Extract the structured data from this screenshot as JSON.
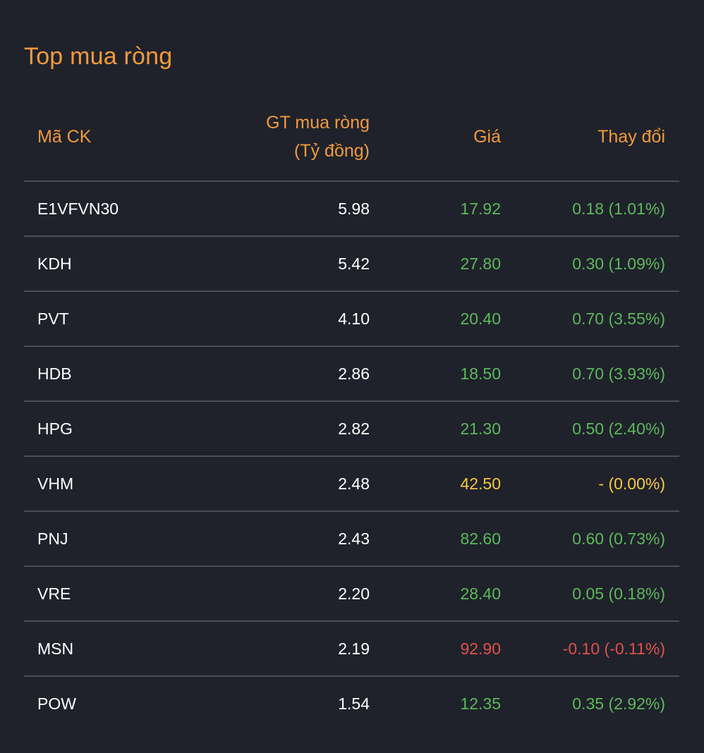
{
  "title": "Top mua ròng",
  "columns": {
    "code": "Mã CK",
    "value_line1": "GT mua ròng",
    "value_line2": "(Tỷ đồng)",
    "price": "Giá",
    "change": "Thay đổi"
  },
  "colors": {
    "title": "#f29a3b",
    "up": "#5cb85c",
    "reference": "#f6c83f",
    "down": "#e0504a",
    "background": "#1f222b"
  },
  "rows": [
    {
      "code": "E1VFVN30",
      "value": "5.98",
      "price": "17.92",
      "change": "0.18 (1.01%)",
      "trend": "up"
    },
    {
      "code": "KDH",
      "value": "5.42",
      "price": "27.80",
      "change": "0.30 (1.09%)",
      "trend": "up"
    },
    {
      "code": "PVT",
      "value": "4.10",
      "price": "20.40",
      "change": "0.70 (3.55%)",
      "trend": "up"
    },
    {
      "code": "HDB",
      "value": "2.86",
      "price": "18.50",
      "change": "0.70 (3.93%)",
      "trend": "up"
    },
    {
      "code": "HPG",
      "value": "2.82",
      "price": "21.30",
      "change": "0.50 (2.40%)",
      "trend": "up"
    },
    {
      "code": "VHM",
      "value": "2.48",
      "price": "42.50",
      "change": "- (0.00%)",
      "trend": "ref"
    },
    {
      "code": "PNJ",
      "value": "2.43",
      "price": "82.60",
      "change": "0.60 (0.73%)",
      "trend": "up"
    },
    {
      "code": "VRE",
      "value": "2.20",
      "price": "28.40",
      "change": "0.05 (0.18%)",
      "trend": "up"
    },
    {
      "code": "MSN",
      "value": "2.19",
      "price": "92.90",
      "change": "-0.10 (-0.11%)",
      "trend": "down"
    },
    {
      "code": "POW",
      "value": "1.54",
      "price": "12.35",
      "change": "0.35 (2.92%)",
      "trend": "up"
    }
  ]
}
